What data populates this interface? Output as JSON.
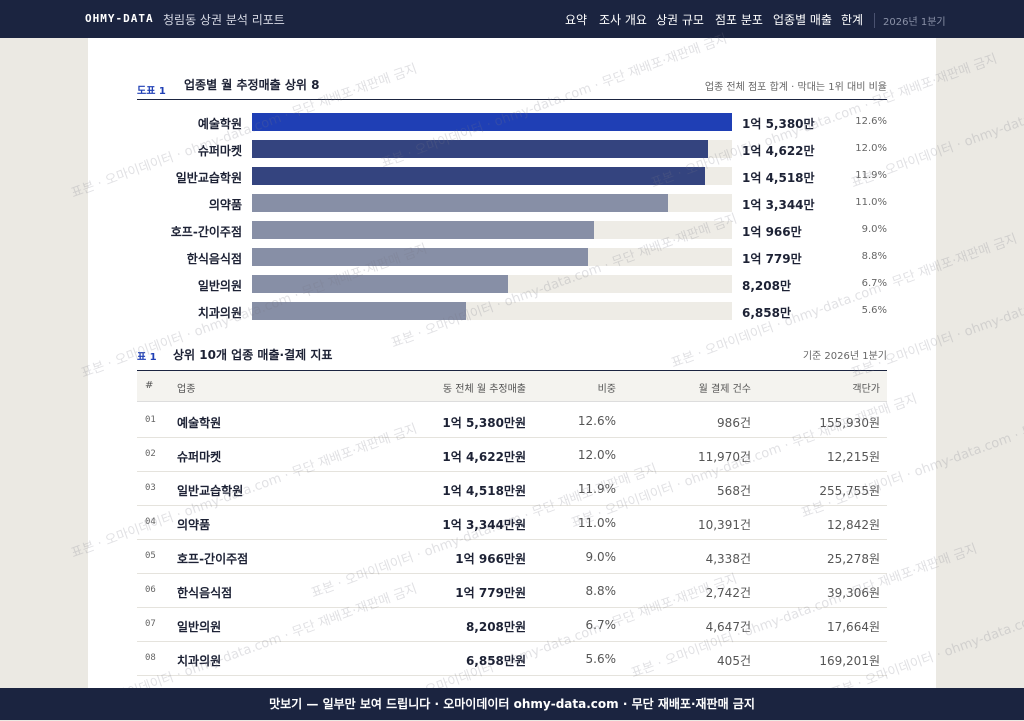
{
  "nav": {
    "brand": "OHMY-DATA",
    "title": "청림동 상권 분석 리포트",
    "links": [
      "요약",
      "조사 개요",
      "상권 규모",
      "점포 분포",
      "업종별 매출",
      "한계"
    ],
    "period": "2026년 1분기"
  },
  "figure": {
    "label": "도표 1",
    "title": "업종별 월 추정매출 상위 8",
    "note": "업종 전체 점포 합계 · 막대는 1위 대비 비율",
    "chart": {
      "type": "bar",
      "categories": [
        "예술학원",
        "슈퍼마켓",
        "일반교습학원",
        "의약품",
        "호프-간이주점",
        "한식음식점",
        "일반의원",
        "치과의원"
      ],
      "values": [
        15380,
        14622,
        14518,
        13344,
        10966,
        10779,
        8208,
        6858
      ],
      "value_labels": [
        "1억 5,380만",
        "1억 4,622만",
        "1억 4,518만",
        "1억 3,344만",
        "1억 966만",
        "1억 779만",
        "8,208만",
        "6,858만"
      ],
      "colors": [
        "#1f3fb5",
        "#34447f",
        "#34447f",
        "#878fa6",
        "#878fa6",
        "#878fa6",
        "#878fa6",
        "#878fa6"
      ],
      "share_labels": [
        "12.6%",
        "12.0%",
        "11.9%",
        "11.0%",
        "9.0%",
        "8.8%",
        "6.7%",
        "5.6%"
      ]
    }
  },
  "table": {
    "label": "표 1",
    "title": "상위 10개 업종 매출·결제 지표",
    "note": "기준 2026년 1분기",
    "columns": [
      "#",
      "업종",
      "동 전체 월 추정매출",
      "비중",
      "월 결제 건수",
      "객단가"
    ],
    "rows": [
      [
        "01",
        "예술학원",
        "1억 5,380만원",
        "12.6%",
        "986건",
        "155,930원"
      ],
      [
        "02",
        "슈퍼마켓",
        "1억 4,622만원",
        "12.0%",
        "11,970건",
        "12,215원"
      ],
      [
        "03",
        "일반교습학원",
        "1억 4,518만원",
        "11.9%",
        "568건",
        "255,755원"
      ],
      [
        "04",
        "의약품",
        "1억 3,344만원",
        "11.0%",
        "10,391건",
        "12,842원"
      ],
      [
        "05",
        "호프-간이주점",
        "1억 966만원",
        "9.0%",
        "4,338건",
        "25,278원"
      ],
      [
        "06",
        "한식음식점",
        "1억 779만원",
        "8.8%",
        "2,742건",
        "39,306원"
      ],
      [
        "07",
        "일반의원",
        "8,208만원",
        "6.7%",
        "4,647건",
        "17,664원"
      ],
      [
        "08",
        "치과의원",
        "6,858만원",
        "5.6%",
        "405건",
        "169,201원"
      ]
    ]
  },
  "footer": "맛보기 — 일부만 보여 드립니다 · 오마이데이터 ohmy-data.com · 무단 재배포·재판매 금지",
  "watermark": "표본 · 오마이데이터 · ohmy-data.com · 무단 재배포·재판매 금지"
}
